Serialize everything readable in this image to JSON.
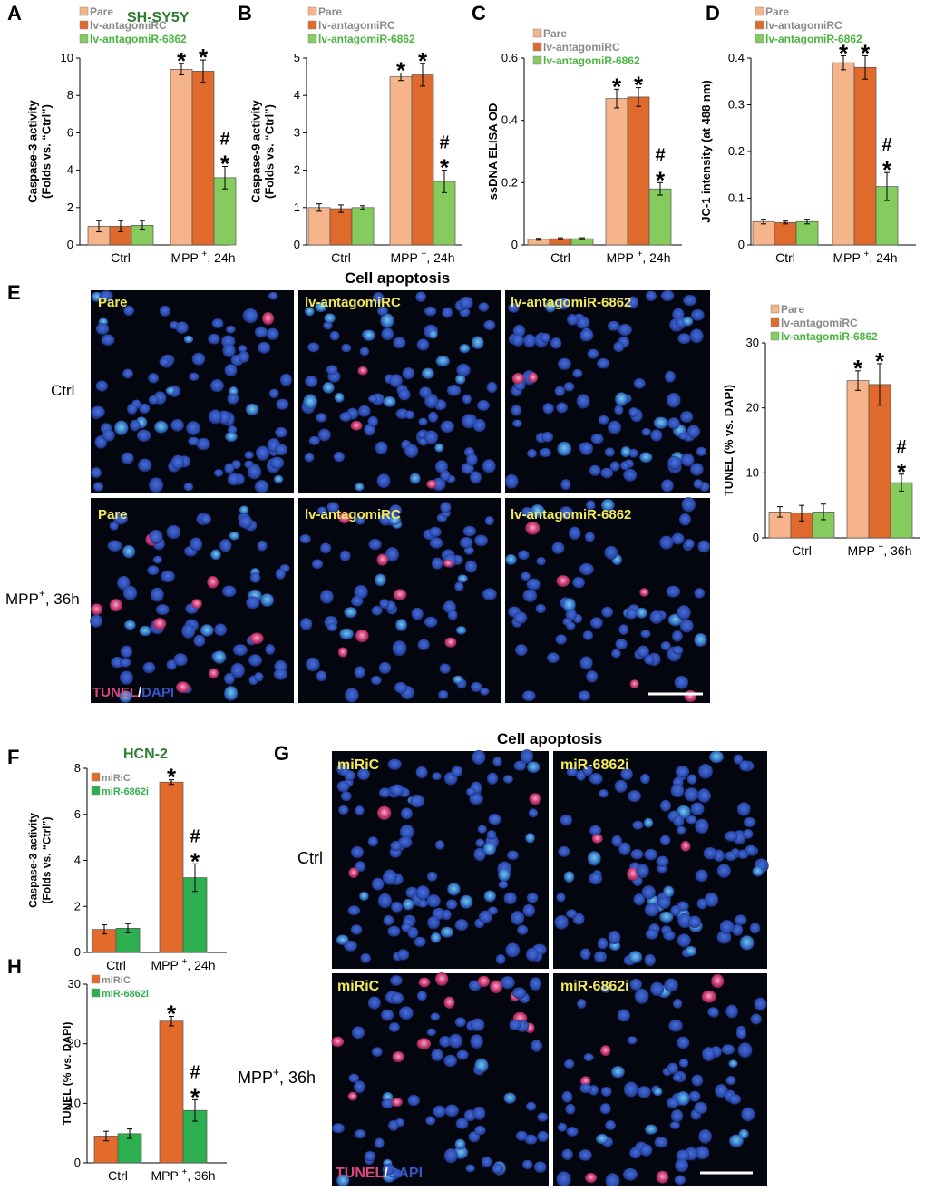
{
  "panel_letters": {
    "A": "A",
    "B": "B",
    "C": "C",
    "D": "D",
    "E": "E",
    "F": "F",
    "G": "G",
    "H": "H"
  },
  "colors": {
    "pare": "#F5B489",
    "antagomiRC": "#E06A2B",
    "antagomiR6862": "#86CB5E",
    "miRiC": "#E26A2B",
    "miR6862i": "#2EAF4F",
    "label_yellow": "#F2E85A",
    "tunel_pink": "#E0457E",
    "dapi_blue": "#3557C8",
    "cell_blue": "#2B4FB5",
    "title_green": "#2E7D32"
  },
  "legend3": {
    "pare": "Pare",
    "antagomiRC": "lv-antagomiRC",
    "antagomiR6862": "lv-antagomiR-6862"
  },
  "legend2": {
    "miRiC": "miRiC",
    "miR6862i": "miR-6862i"
  },
  "titles": {
    "sh_sy5y": "SH-SY5Y",
    "hcn2": "HCN-2",
    "cell_apoptosis_e": "Cell apoptosis",
    "cell_apoptosis_g": "Cell apoptosis"
  },
  "microscopy_e": {
    "row_labels": [
      "Ctrl",
      "MPP",
      "+",
      ", 36h"
    ],
    "top_labels": [
      "Pare",
      "lv-antagomiRC",
      "lv-antagomiR-6862"
    ],
    "bottom_labels": [
      "Pare",
      "lv-antagomiRC",
      "lv-antagomiR-6862"
    ],
    "stain_tunel": "TUNEL",
    "stain_sep": "/",
    "stain_dapi": "DAPI",
    "density": {
      "ctrl": 0.8,
      "mpp_tunel_fraction": 0.15
    }
  },
  "microscopy_g": {
    "row_labels": [
      "Ctrl",
      "MPP",
      "+",
      ", 36h"
    ],
    "top_labels": [
      "miRiC",
      "miR-6862i"
    ],
    "bottom_labels": [
      "miRiC",
      "miR-6862i"
    ],
    "stain_tunel": "TUNEL",
    "stain_sep": "/",
    "stain_dapi": "DAPI"
  },
  "chart_data": [
    {
      "id": "A",
      "type": "bar",
      "categories": [
        "Ctrl",
        "MPP+, 24h"
      ],
      "ylabel": "Caspase-3 activity\n(Folds vs. “Ctrl”)",
      "ylim": [
        0,
        10
      ],
      "yticks": [
        0,
        2,
        4,
        6,
        8,
        10
      ],
      "series": [
        {
          "name": "Pare",
          "values": [
            1.0,
            9.4
          ],
          "errors": [
            0.3,
            0.3
          ]
        },
        {
          "name": "lv-antagomiRC",
          "values": [
            1.0,
            9.3
          ],
          "errors": [
            0.3,
            0.6
          ]
        },
        {
          "name": "lv-antagomiR-6862",
          "values": [
            1.05,
            3.6
          ],
          "errors": [
            0.25,
            0.6
          ]
        }
      ],
      "annotations": [
        [
          "",
          ""
        ],
        [
          "",
          "*"
        ],
        [
          "",
          "*"
        ],
        [
          "",
          "*",
          "#"
        ]
      ]
    },
    {
      "id": "B",
      "type": "bar",
      "categories": [
        "Ctrl",
        "MPP+, 24h"
      ],
      "ylabel": "Caspase-9 activity\n(Folds vs. “Ctrl”)",
      "ylim": [
        0,
        5
      ],
      "yticks": [
        0,
        1,
        2,
        3,
        4,
        5
      ],
      "series": [
        {
          "name": "Pare",
          "values": [
            1.0,
            4.5
          ],
          "errors": [
            0.1,
            0.1
          ]
        },
        {
          "name": "lv-antagomiRC",
          "values": [
            0.97,
            4.55
          ],
          "errors": [
            0.1,
            0.3
          ]
        },
        {
          "name": "lv-antagomiR-6862",
          "values": [
            1.0,
            1.7
          ],
          "errors": [
            0.05,
            0.3
          ]
        }
      ]
    },
    {
      "id": "C",
      "type": "bar",
      "categories": [
        "Ctrl",
        "MPP+, 24h"
      ],
      "ylabel": "ssDNA ELISA OD",
      "ylim": [
        0,
        0.6
      ],
      "yticks": [
        0,
        0.2,
        0.4,
        0.6
      ],
      "series": [
        {
          "name": "Pare",
          "values": [
            0.018,
            0.47
          ],
          "errors": [
            0.003,
            0.03
          ]
        },
        {
          "name": "lv-antagomiRC",
          "values": [
            0.02,
            0.475
          ],
          "errors": [
            0.003,
            0.03
          ]
        },
        {
          "name": "lv-antagomiR-6862",
          "values": [
            0.02,
            0.18
          ],
          "errors": [
            0.003,
            0.02
          ]
        }
      ]
    },
    {
      "id": "D",
      "type": "bar",
      "categories": [
        "Ctrl",
        "MPP+, 24h"
      ],
      "ylabel": "JC-1 intensity (at 488 nm)",
      "ylim": [
        0,
        0.4
      ],
      "yticks": [
        0,
        0.1,
        0.2,
        0.3,
        0.4
      ],
      "series": [
        {
          "name": "Pare",
          "values": [
            0.05,
            0.39
          ],
          "errors": [
            0.005,
            0.015
          ]
        },
        {
          "name": "lv-antagomiRC",
          "values": [
            0.048,
            0.38
          ],
          "errors": [
            0.003,
            0.025
          ]
        },
        {
          "name": "lv-antagomiR-6862",
          "values": [
            0.05,
            0.125
          ],
          "errors": [
            0.005,
            0.03
          ]
        }
      ]
    },
    {
      "id": "E",
      "type": "bar",
      "categories": [
        "Ctrl",
        "MPP+, 36h"
      ],
      "ylabel": "TUNEL (% vs. DAPI)",
      "ylim": [
        0,
        30
      ],
      "yticks": [
        0,
        10,
        20,
        30
      ],
      "series": [
        {
          "name": "Pare",
          "values": [
            4.0,
            24.2
          ],
          "errors": [
            0.8,
            1.5
          ]
        },
        {
          "name": "lv-antagomiRC",
          "values": [
            3.8,
            23.6
          ],
          "errors": [
            1.2,
            3.2
          ]
        },
        {
          "name": "lv-antagomiR-6862",
          "values": [
            4.0,
            8.5
          ],
          "errors": [
            1.2,
            1.3
          ]
        }
      ]
    },
    {
      "id": "F",
      "type": "bar",
      "categories": [
        "Ctrl",
        "MPP+, 24h"
      ],
      "ylabel": "Caspase-3 activity\n(Folds vs. “Ctrl”)",
      "ylim": [
        0,
        8
      ],
      "yticks": [
        0,
        2,
        4,
        6,
        8
      ],
      "series": [
        {
          "name": "miRiC",
          "values": [
            1.0,
            7.4
          ],
          "errors": [
            0.2,
            0.1
          ]
        },
        {
          "name": "miR-6862i",
          "values": [
            1.05,
            3.25
          ],
          "errors": [
            0.2,
            0.6
          ]
        }
      ]
    },
    {
      "id": "H",
      "type": "bar",
      "categories": [
        "Ctrl",
        "MPP+, 36h"
      ],
      "ylabel": "TUNEL (% vs. DAPI)",
      "ylim": [
        0,
        30
      ],
      "yticks": [
        0,
        10,
        20,
        30
      ],
      "series": [
        {
          "name": "miRiC",
          "values": [
            4.5,
            23.8
          ],
          "errors": [
            0.8,
            0.8
          ]
        },
        {
          "name": "miR-6862i",
          "values": [
            4.9,
            8.8
          ],
          "errors": [
            0.8,
            1.8
          ]
        }
      ]
    }
  ]
}
